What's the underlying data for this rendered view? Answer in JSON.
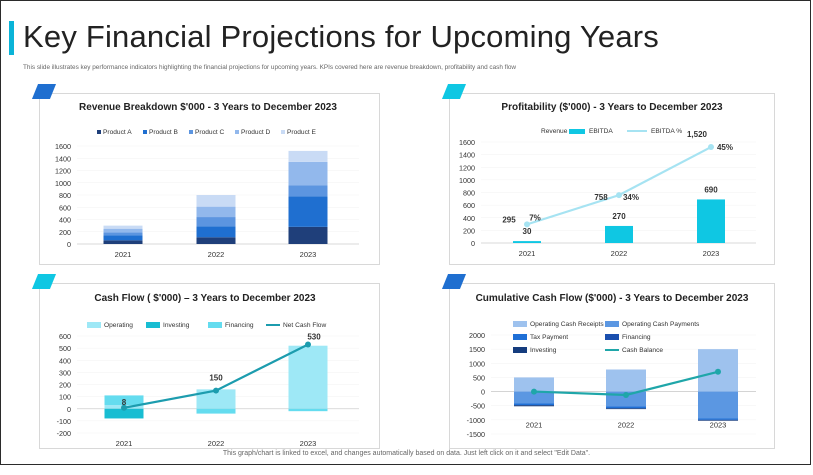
{
  "page": {
    "title": "Key Financial Projections for Upcoming Years",
    "subtitle": "This slide illustrates key performance indicators highlighting the financial projections for upcoming years. KPIs covered here are revenue breakdown, profitability and cash flow",
    "footer": "This graph/chart is linked to excel, and changes automatically based on data. Just left click on it and select \"Edit Data\".",
    "accent_color": "#0ab4d8"
  },
  "chart_data": [
    {
      "id": "revenue",
      "type": "bar",
      "stacked": true,
      "title": "Revenue Breakdown $'000 - 3 Years to December 2023",
      "categories": [
        "2021",
        "2022",
        "2023"
      ],
      "yticks": [
        0,
        200,
        400,
        600,
        800,
        1000,
        1200,
        1400,
        1600
      ],
      "ylim": [
        0,
        1600
      ],
      "legend_position": "top",
      "series": [
        {
          "name": "Product A",
          "color": "#1f3f7a",
          "values": [
            60,
            110,
            280
          ]
        },
        {
          "name": "Product B",
          "color": "#1f6fd0",
          "values": [
            80,
            180,
            500
          ]
        },
        {
          "name": "Product C",
          "color": "#5c95e0",
          "values": [
            50,
            150,
            180
          ]
        },
        {
          "name": "Product D",
          "color": "#92b8ec",
          "values": [
            60,
            170,
            380
          ]
        },
        {
          "name": "Product E",
          "color": "#c9dbf5",
          "values": [
            50,
            190,
            180
          ]
        }
      ]
    },
    {
      "id": "profitability",
      "type": "bar",
      "title": "Profitability ($'000) - 3 Years to December 2023",
      "categories": [
        "2021",
        "2022",
        "2023"
      ],
      "yticks": [
        0,
        200,
        400,
        600,
        800,
        1000,
        1200,
        1400,
        1600
      ],
      "ylim": [
        0,
        1600
      ],
      "legend_position": "top",
      "series": [
        {
          "name": "Revenue",
          "type": "line",
          "color": "#a6e3f2",
          "values": [
            295,
            758,
            1520
          ],
          "labels": [
            "295",
            "758",
            "1,520"
          ]
        },
        {
          "name": "EBITDA",
          "type": "bar",
          "color": "#0fc7e3",
          "values": [
            30,
            270,
            690
          ],
          "labels": [
            "30",
            "270",
            "690"
          ]
        },
        {
          "name": "EBITDA %",
          "type": "line",
          "color": "#a6e3f2",
          "values": [
            7,
            34,
            45
          ],
          "labels": [
            "7%",
            "34%",
            "45%"
          ]
        }
      ],
      "legend_entries": [
        "Revenue",
        "EBITDA",
        "EBITDA %"
      ]
    },
    {
      "id": "cashflow",
      "type": "bar",
      "stacked": true,
      "title": "Cash Flow ( $'000) – 3 Years to December 2023",
      "categories": [
        "2021",
        "2022",
        "2023"
      ],
      "yticks": [
        -200,
        -100,
        0,
        100,
        200,
        300,
        400,
        500,
        600
      ],
      "ylim": [
        -200,
        600
      ],
      "legend_position": "top",
      "series": [
        {
          "name": "Operating",
          "type": "bar",
          "color": "#9ee8f6",
          "values": [
            30,
            160,
            520
          ]
        },
        {
          "name": "Investing",
          "type": "bar",
          "color": "#18bdd2",
          "values": [
            -80,
            0,
            0
          ]
        },
        {
          "name": "Financing",
          "type": "bar",
          "color": "#64dcef",
          "values": [
            80,
            -40,
            -20
          ]
        },
        {
          "name": "Net Cash Flow",
          "type": "line",
          "color": "#1c9cae",
          "values": [
            8,
            150,
            530
          ],
          "labels": [
            "8",
            "150",
            "530"
          ]
        }
      ]
    },
    {
      "id": "cumulative",
      "type": "bar",
      "stacked": true,
      "title": "Cumulative Cash Flow ($'000) - 3 Years to December 2023",
      "categories": [
        "2021",
        "2022",
        "2023"
      ],
      "yticks": [
        -1500,
        -1000,
        -500,
        0,
        500,
        1000,
        1500,
        2000
      ],
      "ylim": [
        -1500,
        2000
      ],
      "legend_position": "top",
      "series": [
        {
          "name": "Operating Cash Receipts",
          "type": "bar",
          "color": "#9ec2ee",
          "values": [
            500,
            780,
            1500
          ]
        },
        {
          "name": "Operating Cash Payments",
          "type": "bar",
          "color": "#5b97e2",
          "values": [
            -420,
            -520,
            -950
          ]
        },
        {
          "name": "Tax Payment",
          "type": "bar",
          "color": "#1e6fd6",
          "values": [
            -60,
            -70,
            -50
          ]
        },
        {
          "name": "Financing",
          "type": "bar",
          "color": "#1a4fae",
          "values": [
            0,
            0,
            0
          ]
        },
        {
          "name": "Investing",
          "type": "bar",
          "color": "#153c7e",
          "values": [
            -40,
            -30,
            -30
          ]
        },
        {
          "name": "Cash Balance",
          "type": "line",
          "color": "#1fa6a9",
          "values": [
            0,
            -120,
            700
          ]
        }
      ]
    }
  ]
}
